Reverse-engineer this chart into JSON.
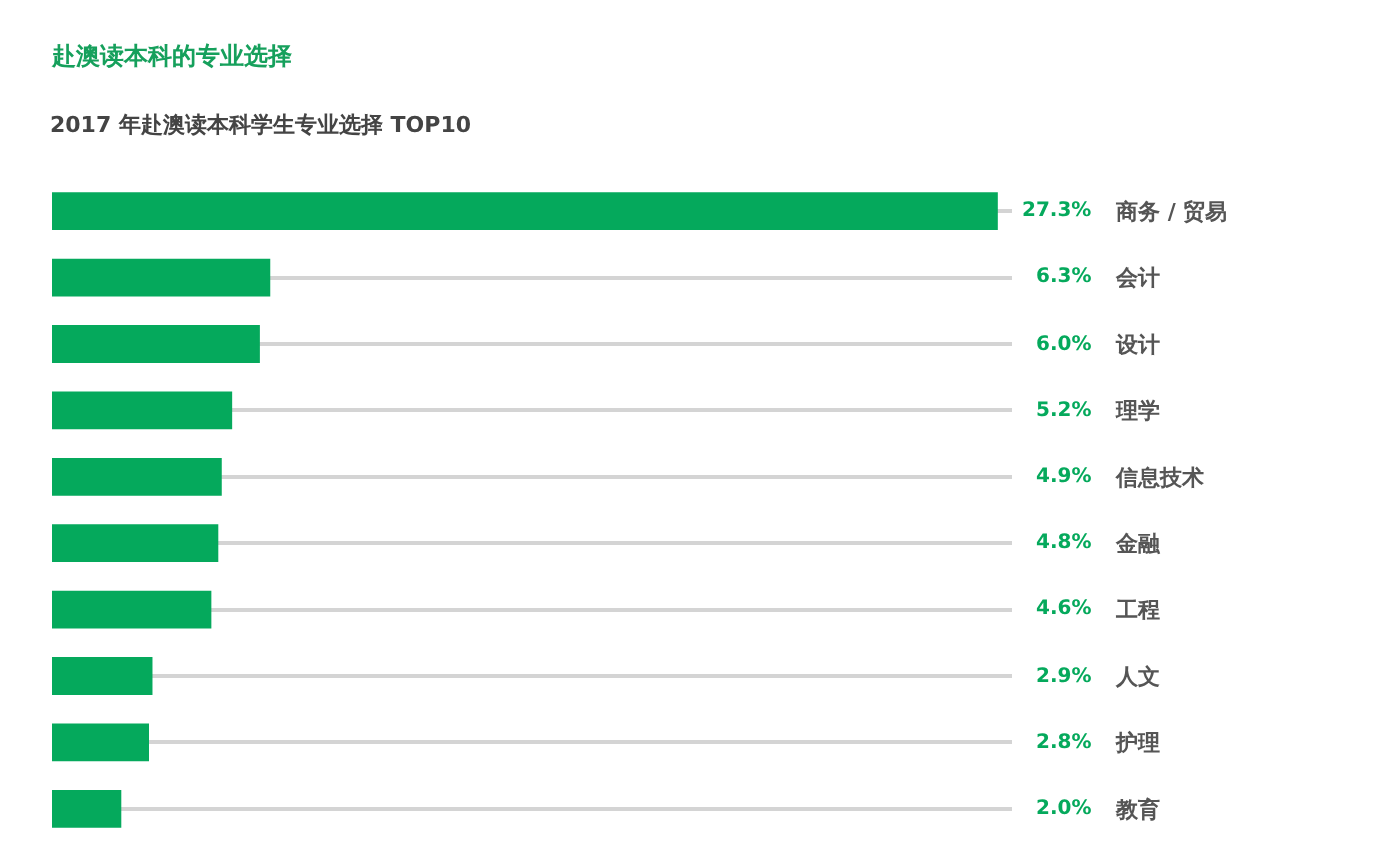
{
  "chart_data": {
    "type": "bar",
    "orientation": "horizontal",
    "title": "赴澳读本科的专业选择",
    "subtitle": "2017 年赴澳读本科学生专业选择 TOP10",
    "categories": [
      "商务 / 贸易",
      "会计",
      "设计",
      "理学",
      "信息技术",
      "金融",
      "工程",
      "人文",
      "护理",
      "教育"
    ],
    "values": [
      27.3,
      6.3,
      6.0,
      5.2,
      4.9,
      4.8,
      4.6,
      2.9,
      2.8,
      2.0
    ],
    "value_labels": [
      "27.3%",
      "6.3%",
      "6.0%",
      "5.2%",
      "4.9%",
      "4.8%",
      "4.6%",
      "2.9%",
      "2.8%",
      "2.0%"
    ],
    "color": "#05a95c",
    "grid": "y",
    "tick_labels": "y"
  }
}
